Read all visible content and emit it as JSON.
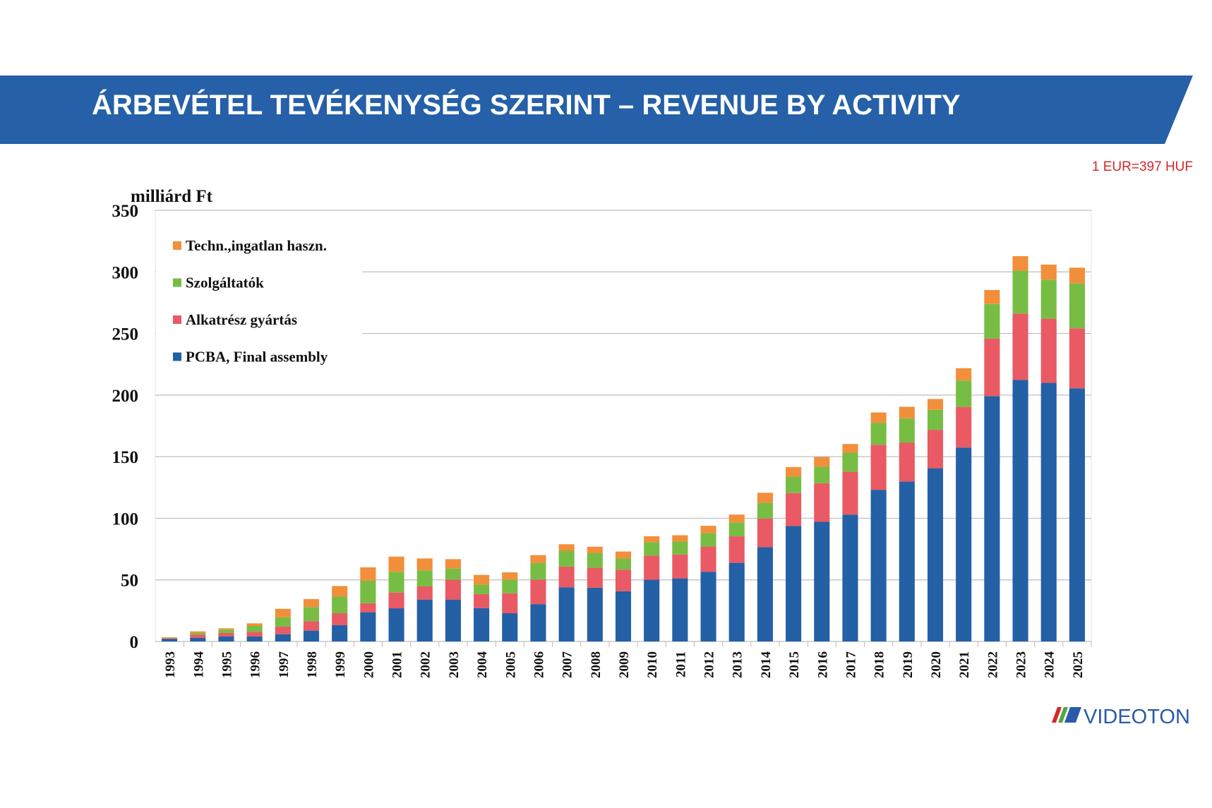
{
  "header": {
    "title": "ÁRBEVÉTEL TEVÉKENYSÉG SZERINT – REVENUE BY ACTIVITY",
    "banner_color": "#2560a8"
  },
  "note": "1 EUR=397 HUF",
  "logo": {
    "text": "VIDEOTON"
  },
  "chart_data": {
    "type": "bar",
    "stacked": true,
    "ylabel": "milliárd Ft",
    "ylim": [
      0,
      350
    ],
    "yticks": [
      0,
      50,
      100,
      150,
      200,
      250,
      300,
      350
    ],
    "grid": true,
    "legend_position": "top-left",
    "categories": [
      "1993",
      "1994",
      "1995",
      "1996",
      "1997",
      "1998",
      "1999",
      "2000",
      "2001",
      "2002",
      "2003",
      "2004",
      "2005",
      "2006",
      "2007",
      "2008",
      "2009",
      "2010",
      "2011",
      "2012",
      "2013",
      "2014",
      "2015",
      "2016",
      "2017",
      "2018",
      "2019",
      "2020",
      "2021",
      "2022",
      "2023",
      "2024",
      "2025"
    ],
    "series": [
      {
        "name": "PCBA, Final assembly",
        "color": "#2360a6",
        "values": [
          2.0,
          2.9,
          4.0,
          4.0,
          5.9,
          8.8,
          13.2,
          23.7,
          26.9,
          34.0,
          34.0,
          27.1,
          22.9,
          30.3,
          44.0,
          43.6,
          40.8,
          50.1,
          51.2,
          56.6,
          63.8,
          76.5,
          93.7,
          97.1,
          103.0,
          123.1,
          129.8,
          140.6,
          157.4,
          199.2,
          212.4,
          209.9,
          205.5
        ]
      },
      {
        "name": "Alkatrész gyártás",
        "color": "#e95a64",
        "values": [
          0.5,
          2.5,
          2.9,
          3.8,
          6.1,
          7.6,
          9.7,
          7.3,
          12.8,
          10.7,
          16.2,
          11.3,
          16.2,
          20.0,
          16.8,
          16.2,
          17.5,
          19.6,
          19.4,
          20.4,
          21.5,
          23.3,
          26.7,
          31.3,
          34.8,
          36.6,
          31.7,
          31.2,
          33.0,
          46.6,
          53.8,
          52.1,
          48.7
        ]
      },
      {
        "name": "Szolgáltatók",
        "color": "#78bd43",
        "values": [
          0.3,
          1.5,
          2.7,
          4.8,
          7.6,
          11.5,
          13.5,
          18.3,
          16.8,
          13.0,
          9.0,
          7.8,
          11.1,
          13.3,
          12.8,
          11.8,
          9.0,
          10.9,
          10.5,
          11.0,
          11.4,
          12.7,
          13.4,
          13.4,
          15.4,
          17.8,
          19.6,
          16.2,
          21.4,
          28.1,
          34.8,
          31.7,
          36.4
        ]
      },
      {
        "name": "Techn.,ingatlan haszn.",
        "color": "#f28f3b",
        "values": [
          0.6,
          1.3,
          1.1,
          2.1,
          6.9,
          6.5,
          8.6,
          10.9,
          12.4,
          9.7,
          7.6,
          7.8,
          5.9,
          6.5,
          5.3,
          5.3,
          5.7,
          4.8,
          5.1,
          5.9,
          6.3,
          8.2,
          7.8,
          8.0,
          7.1,
          8.4,
          9.4,
          8.8,
          10.0,
          11.4,
          11.8,
          12.2,
          12.8
        ]
      }
    ]
  }
}
